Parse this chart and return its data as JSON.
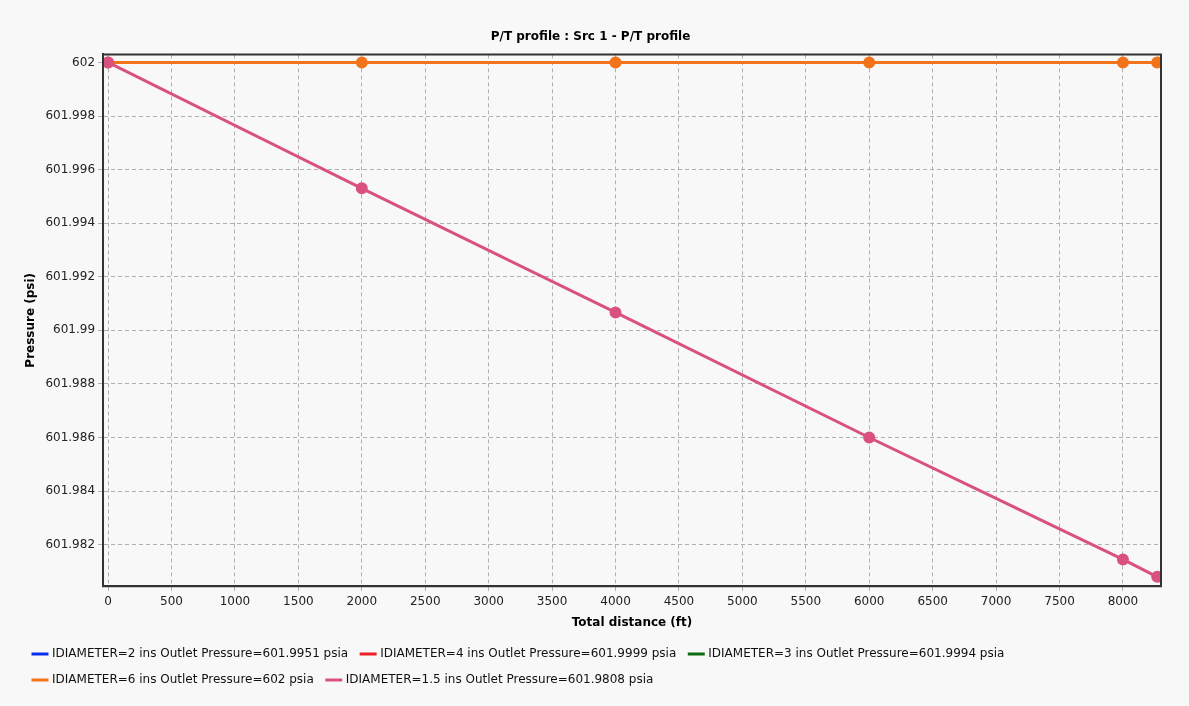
{
  "chart_data": {
    "type": "line",
    "title": "P/T profile : Src 1 - P/T profile",
    "xlabel": "Total distance (ft)",
    "ylabel": "Pressure (psi)",
    "x": [
      0,
      2000,
      4000,
      6000,
      8000,
      8270
    ],
    "series": [
      {
        "name": "IDIAMETER=2 ins Outlet Pressure=601.9951 psia",
        "color": "#0a2cf0",
        "values": [
          null,
          null,
          null,
          null,
          null,
          null
        ]
      },
      {
        "name": "IDIAMETER=4 ins Outlet Pressure=601.9999 psia",
        "color": "#ee1c24",
        "values": [
          null,
          null,
          null,
          null,
          null,
          null
        ]
      },
      {
        "name": "IDIAMETER=3 ins Outlet Pressure=601.9994 psia",
        "color": "#0b6b12",
        "values": [
          null,
          null,
          null,
          null,
          null,
          null
        ]
      },
      {
        "name": "IDIAMETER=6 ins Outlet Pressure=602 psia",
        "color": "#f27319",
        "values": [
          602,
          602,
          602,
          602,
          602,
          602
        ]
      },
      {
        "name": "IDIAMETER=1.5 ins Outlet Pressure=601.9808 psia",
        "color": "#d9517f",
        "values": [
          602,
          601.9953,
          601.99067,
          601.986,
          601.98145,
          601.9808
        ]
      }
    ],
    "xlim": [
      -40,
      8300
    ],
    "xticks": [
      0,
      500,
      1000,
      1500,
      2000,
      2500,
      3000,
      3500,
      4000,
      4500,
      5000,
      5500,
      6000,
      6500,
      7000,
      7500,
      8000
    ],
    "ylim": [
      601.98045,
      602.0003
    ],
    "yticks": [
      601.982,
      601.984,
      601.986,
      601.988,
      601.99,
      601.992,
      601.994,
      601.996,
      601.998,
      602
    ],
    "grid": true,
    "legend": "bottom",
    "marker": "circle",
    "line_style": "solid"
  }
}
